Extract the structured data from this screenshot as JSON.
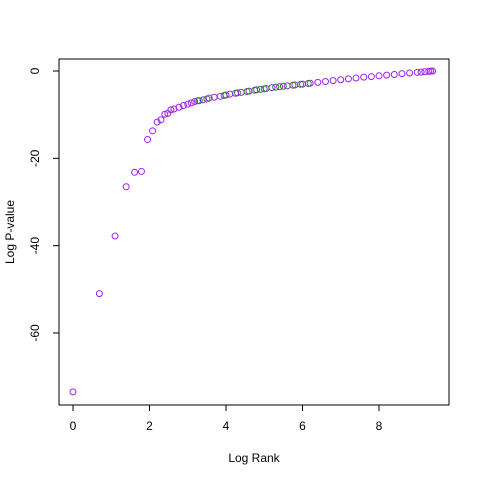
{
  "chart_data": {
    "type": "scatter",
    "x_label": "Log Rank",
    "y_label": "Log P-value",
    "xlim": [
      -0.366,
      9.83
    ],
    "ylim": [
      -76.5,
      2.75
    ],
    "xticks": [
      0,
      2,
      4,
      6,
      8
    ],
    "yticks": [
      0,
      -20,
      -40,
      -60
    ],
    "series": [
      {
        "color": "#a020f0",
        "x": [
          0,
          0.69,
          1.1,
          1.39,
          1.61,
          1.79,
          1.95,
          2.08,
          2.2,
          2.3,
          2.4,
          2.48,
          2.56,
          2.64,
          2.77,
          2.89,
          3.0,
          3.09,
          3.18,
          3.26,
          3.4,
          3.56,
          3.69,
          3.85,
          4.0,
          4.1,
          4.25,
          4.4,
          4.6,
          4.8,
          5.0,
          5.2,
          5.4,
          5.6,
          5.8,
          6.0,
          6.2,
          6.4,
          6.6,
          6.8,
          7.0,
          7.2,
          7.4,
          7.6,
          7.8,
          8.0,
          8.2,
          8.4,
          8.6,
          8.8,
          9.0,
          9.1,
          9.2,
          9.3,
          9.35,
          9.4
        ],
        "values": [
          -73.5,
          -51,
          -37.8,
          -26.5,
          -23.2,
          -23,
          -15.7,
          -13.7,
          -11.7,
          -11.2,
          -9.9,
          -9.7,
          -8.9,
          -8.7,
          -8.3,
          -7.9,
          -7.6,
          -7.3,
          -7.0,
          -6.8,
          -6.6,
          -6.2,
          -6.0,
          -5.8,
          -5.5,
          -5.3,
          -5.1,
          -4.9,
          -4.6,
          -4.3,
          -4.1,
          -3.8,
          -3.6,
          -3.4,
          -3.2,
          -3.0,
          -2.8,
          -2.6,
          -2.4,
          -2.2,
          -2.0,
          -1.8,
          -1.6,
          -1.4,
          -1.3,
          -1.1,
          -0.95,
          -0.8,
          -0.6,
          -0.45,
          -0.3,
          -0.25,
          -0.15,
          -0.08,
          -0.03,
          0
        ]
      },
      {
        "color": "#228b22",
        "x": [
          3.3,
          3.5,
          3.95,
          4.3,
          4.55,
          4.75,
          4.9,
          5.05,
          5.3,
          5.5,
          5.75,
          5.95,
          6.15
        ],
        "values": [
          -6.8,
          -6.4,
          -5.6,
          -5.0,
          -4.7,
          -4.4,
          -4.2,
          -4.0,
          -3.7,
          -3.5,
          -3.25,
          -3.05,
          -2.85
        ]
      }
    ]
  }
}
